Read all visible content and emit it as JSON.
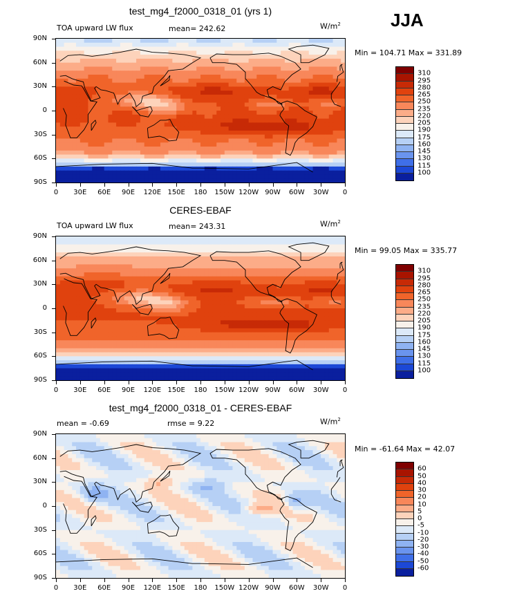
{
  "season": "JJA",
  "units_text": "W/m",
  "units_sup": "2",
  "chart_data": [
    {
      "type": "heatmap",
      "title": "test_mg4_f2000_0318_01 (yrs 1)",
      "left_label": "TOA upward LW flux",
      "stat_text": "mean= 242.62",
      "minmax_text": "Min = 104.71 Max = 331.89",
      "lat_ticks": [
        "90N",
        "60N",
        "30N",
        "0",
        "30S",
        "60S",
        "90S"
      ],
      "lon_ticks": [
        "0",
        "30E",
        "60E",
        "90E",
        "120E",
        "150E",
        "180",
        "150W",
        "120W",
        "90W",
        "60W",
        "30W",
        "0"
      ],
      "levels": [
        "310",
        "295",
        "280",
        "265",
        "250",
        "235",
        "220",
        "205",
        "190",
        "175",
        "160",
        "145",
        "130",
        "115",
        "100"
      ],
      "colors": [
        "#7f0000",
        "#a81400",
        "#c72a06",
        "#e0420e",
        "#f0642a",
        "#f8875a",
        "#fcac88",
        "#fdd3bb",
        "#f8f1ea",
        "#dce9f8",
        "#b6d0f5",
        "#8fb3f2",
        "#6a94ee",
        "#3f6fe8",
        "#1c48d6",
        "#0a1f9e"
      ],
      "field": "model"
    },
    {
      "type": "heatmap",
      "title": "CERES-EBAF",
      "left_label": "TOA upward LW flux",
      "stat_text": "mean= 243.31",
      "minmax_text": "Min =  99.05 Max = 335.77",
      "lat_ticks": [
        "90N",
        "60N",
        "30N",
        "0",
        "30S",
        "60S",
        "90S"
      ],
      "lon_ticks": [
        "0",
        "30E",
        "60E",
        "90E",
        "120E",
        "150E",
        "180",
        "150W",
        "120W",
        "90W",
        "60W",
        "30W",
        "0"
      ],
      "levels": [
        "310",
        "295",
        "280",
        "265",
        "250",
        "235",
        "220",
        "205",
        "190",
        "175",
        "160",
        "145",
        "130",
        "115",
        "100"
      ],
      "colors": [
        "#7f0000",
        "#a81400",
        "#c72a06",
        "#e0420e",
        "#f0642a",
        "#f8875a",
        "#fcac88",
        "#fdd3bb",
        "#f8f1ea",
        "#dce9f8",
        "#b6d0f5",
        "#8fb3f2",
        "#6a94ee",
        "#3f6fe8",
        "#1c48d6",
        "#0a1f9e"
      ],
      "field": "obs"
    },
    {
      "type": "heatmap",
      "title": "test_mg4_f2000_0318_01 - CERES-EBAF",
      "left_label": "mean =   -0.69",
      "stat_text": "rmse =    9.22",
      "minmax_text": "Min = -61.64 Max =  42.07",
      "lat_ticks": [
        "90N",
        "60N",
        "30N",
        "0",
        "30S",
        "60S",
        "90S"
      ],
      "lon_ticks": [
        "0",
        "30E",
        "60E",
        "90E",
        "120E",
        "150E",
        "180",
        "150W",
        "120W",
        "90W",
        "60W",
        "30W",
        "0"
      ],
      "levels": [
        "60",
        "50",
        "40",
        "30",
        "20",
        "10",
        "5",
        "0",
        "-5",
        "-10",
        "-20",
        "-30",
        "-40",
        "-50",
        "-60"
      ],
      "colors": [
        "#7f0000",
        "#a81400",
        "#c72a06",
        "#e0420e",
        "#f0642a",
        "#f8875a",
        "#fcac88",
        "#fdd3bb",
        "#f8f1ea",
        "#dce9f8",
        "#b6d0f5",
        "#8fb3f2",
        "#6a94ee",
        "#3f6fe8",
        "#1c48d6",
        "#0a1f9e"
      ],
      "field": "diff"
    }
  ]
}
